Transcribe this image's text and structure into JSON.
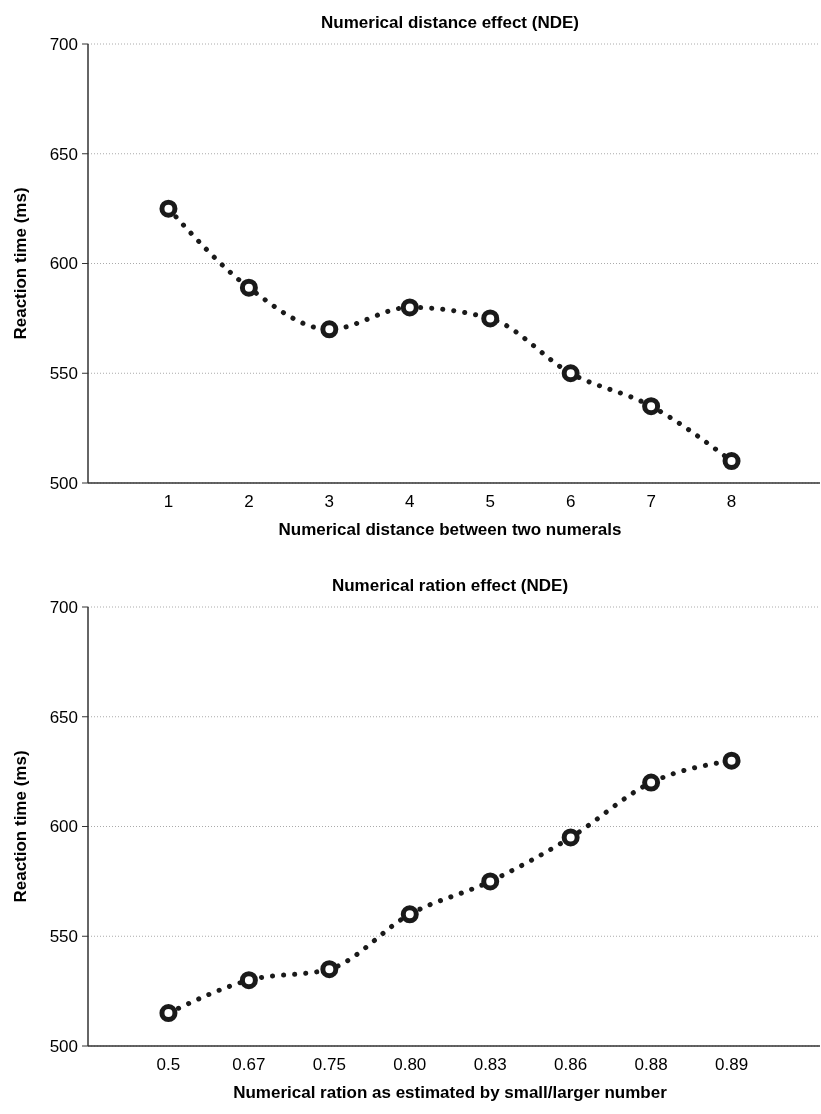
{
  "chart_data": [
    {
      "type": "line",
      "title": "Numerical distance effect (NDE)",
      "xlabel": "Numerical distance between two numerals",
      "ylabel": "Reaction time (ms)",
      "categories": [
        "1",
        "2",
        "3",
        "4",
        "5",
        "6",
        "7",
        "8"
      ],
      "series": [
        {
          "color": "#1a1a1a",
          "values": [
            625,
            589,
            570,
            580,
            575,
            550,
            535,
            510
          ]
        }
      ],
      "ylim": [
        500,
        700
      ],
      "yticks": [
        500,
        550,
        600,
        650,
        700
      ],
      "grid": "y",
      "marker": "circle",
      "line_style": "dotted"
    },
    {
      "type": "line",
      "title": "Numerical ration effect (NDE)",
      "xlabel": "Numerical ration as estimated by small/larger number",
      "ylabel": "Reaction time (ms)",
      "categories": [
        "0.5",
        "0.67",
        "0.75",
        "0.80",
        "0.83",
        "0.86",
        "0.88",
        "0.89"
      ],
      "series": [
        {
          "color": "#1a1a1a",
          "values": [
            515,
            530,
            535,
            560,
            575,
            595,
            620,
            630
          ]
        }
      ],
      "ylim": [
        500,
        700
      ],
      "yticks": [
        500,
        550,
        600,
        650,
        700
      ],
      "grid": "y",
      "marker": "circle",
      "line_style": "dotted"
    }
  ]
}
